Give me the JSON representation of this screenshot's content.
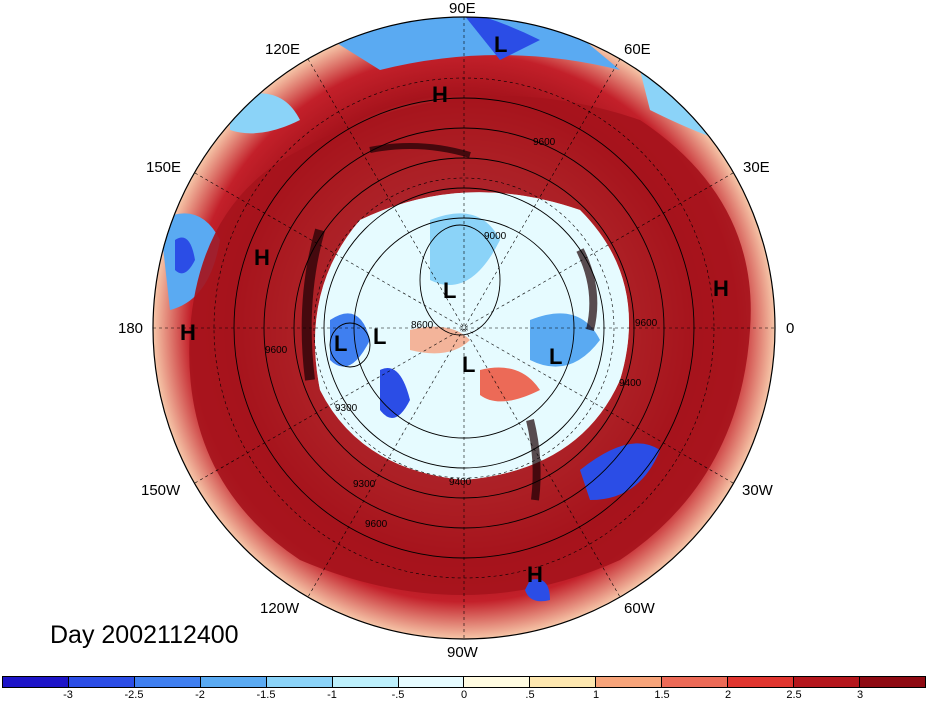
{
  "title": "Day 2002112400",
  "longitude_labels": {
    "top": "90E",
    "top_left": "120E",
    "top_right": "60E",
    "upper_left": "150E",
    "upper_right": "30E",
    "left": "180",
    "right": "0",
    "lower_left": "150W",
    "lower_right": "30W",
    "bottom_left": "120W",
    "bottom_right": "60W",
    "bottom": "90W"
  },
  "pressure_centers": [
    {
      "id": "top",
      "mark": "L"
    },
    {
      "id": "upper-left",
      "mark": "H"
    },
    {
      "id": "left-far",
      "mark": "H"
    },
    {
      "id": "left-edge",
      "mark": "H"
    },
    {
      "id": "right-edge",
      "mark": "H"
    },
    {
      "id": "inner-1",
      "mark": "L"
    },
    {
      "id": "inner-2",
      "mark": "L"
    },
    {
      "id": "inner-3",
      "mark": "L"
    },
    {
      "id": "inner-4",
      "mark": "L"
    },
    {
      "id": "inner-5",
      "mark": "L"
    },
    {
      "id": "bottom",
      "mark": "H"
    }
  ],
  "contour_labels": [
    "9600",
    "9000",
    "8600",
    "9300",
    "9400",
    "9600",
    "9300",
    "9600",
    "9600",
    "9400"
  ],
  "colorbar": {
    "colors": [
      "#1d14c8",
      "#2b4de6",
      "#3f7ff0",
      "#5aaaf2",
      "#8bd3f8",
      "#bdf0fc",
      "#e6fbff",
      "#fffbe1",
      "#fde7b0",
      "#f7a47a",
      "#ec6a57",
      "#e0352f",
      "#b4161c",
      "#8e0a12"
    ],
    "tick_labels": [
      "-3",
      "-2.5",
      "-2",
      "-1.5",
      "-1",
      "-.5",
      "0",
      ".5",
      "1",
      "1.5",
      "2",
      "2.5",
      "3"
    ]
  },
  "colors": {
    "ring_red": "#a6131c",
    "interior_blue": "#3f7ff0"
  }
}
